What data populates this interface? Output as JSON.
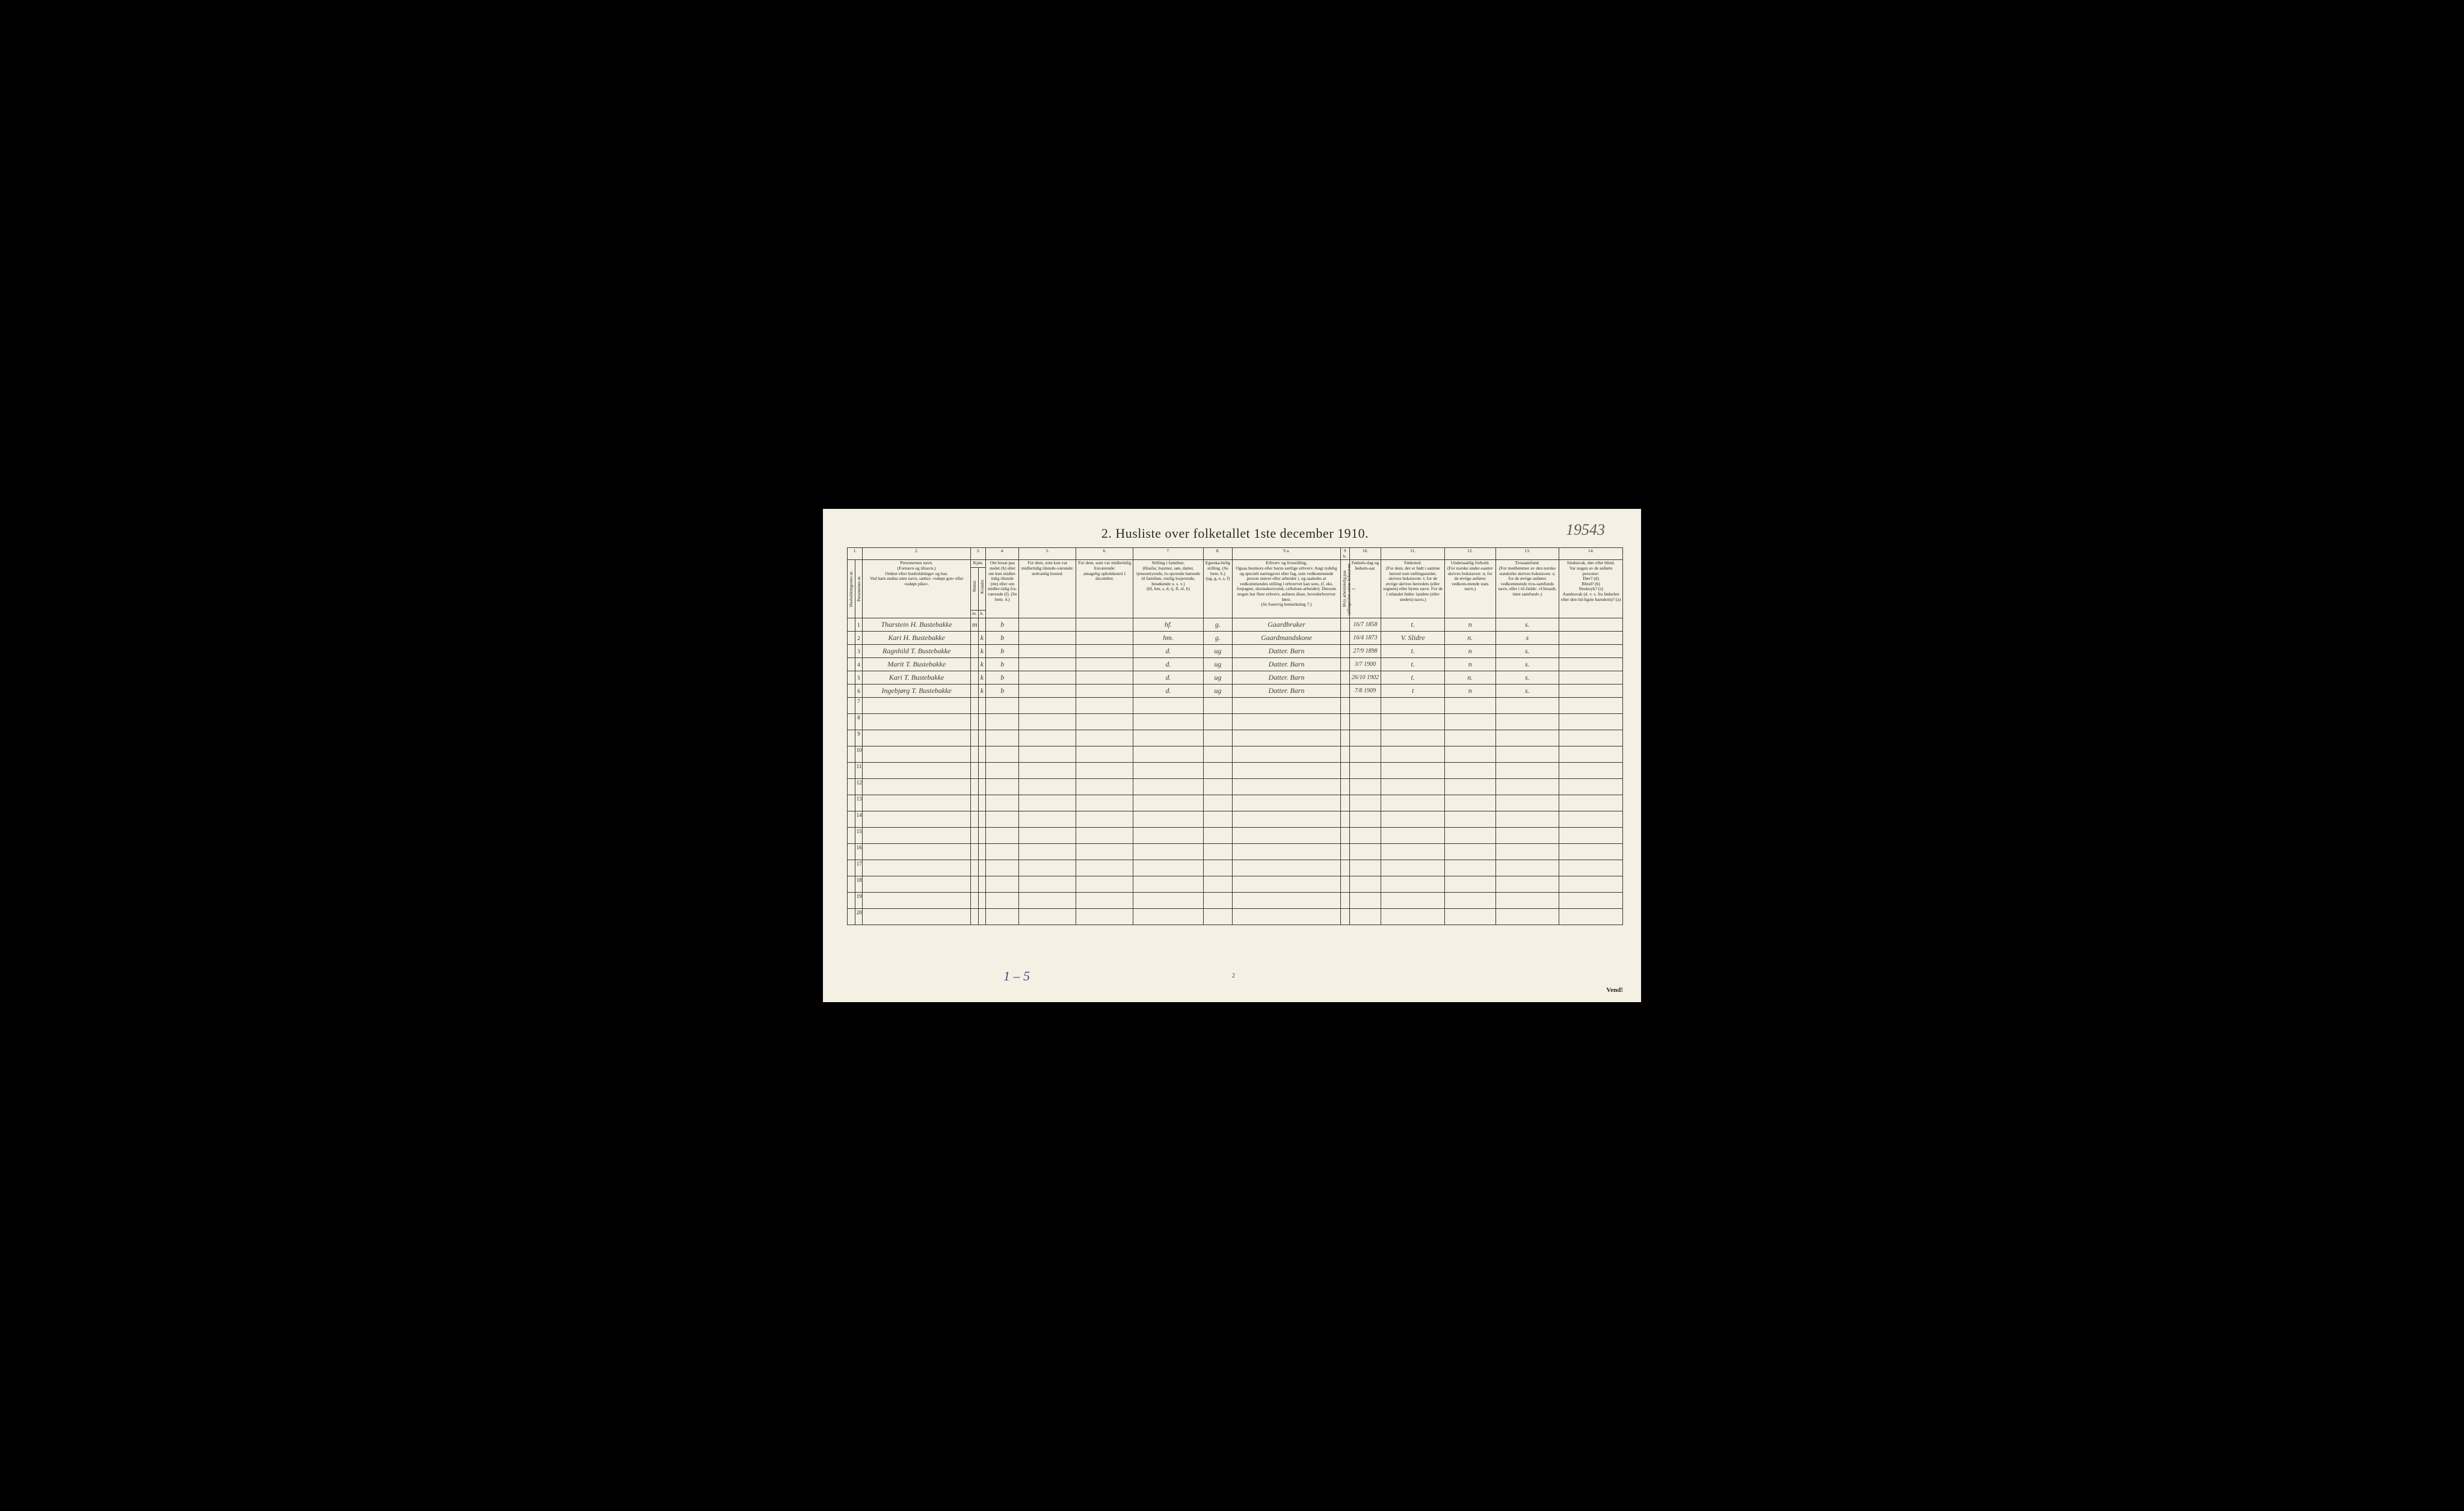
{
  "title": "2.  Husliste over folketallet 1ste december 1910.",
  "topRightNote": "19543",
  "bottomLeftNote": "1 – 5",
  "pageNumber": "2",
  "vend": "Vend!",
  "colNumbers": [
    "1.",
    "2.",
    "3.",
    "4.",
    "5.",
    "6.",
    "7.",
    "8.",
    "9 a.",
    "9 b.",
    "10.",
    "11.",
    "12.",
    "13.",
    "14."
  ],
  "headers": {
    "c1a": "Husholdningernes nr.",
    "c1b": "Personernes nr.",
    "c2": "Personernes navn.\n(Fornavn og tilnavn.)\nOrdnet efter husholdninger og hus.\nVed barn endnu uten navn, sættes: «udøpt gut» eller «udøpt pike».",
    "c3": "Kjøn.",
    "c3m": "Mænd.",
    "c3k": "Kvinder.",
    "c3ml": "m.",
    "c3kl": "k.",
    "c4": "Om bosat paa stedet (b) eller om kun midler-tidig tilstede (mt) eller om midler-tidig fra-værende (f). (Se bem. 4.)",
    "c5": "For dem, som kun var midlertidig tilstede-værende:\nsedvanlig bosted.",
    "c6": "For dem, som var midlertidig fraværende:\nantagelig opholdssted 1 december.",
    "c7": "Stilling i familien.\n(Husfar, husmor, søn, datter, tjenestetyende, lo-sjerende hørende til familien, enslig losjerende, besøkende o. s. v.)\n(hf, hm, s, d, tj, fl, el, b)",
    "c8": "Egteska-belig stilling. (Se bem. 6.)\n(ug, g, e, s, f)",
    "c9a": "Erhverv og livsstilling.\nOgsaa husmors eller barns særlige erhverv. Angi tydelig og specielt næringsvei eller fag, som vedkommende person utøver eller arbeider i, og saaledes at vedkommendes stilling i erhvervet kan sees, (f. eks. forpagter, skomakersvend, cellulose-arbeider). Dersom nogen har flere erhverv, anføres disse, hovederhvervet først.\n(Se forøvrig bemerkning 7.)",
    "c9b": "Hvis arbeidsledig paa tællingstiden sættes bokstaven: l",
    "c10": "Fødsels-dag og fødsels-aar.",
    "c11": "Fødested.\n(For dem, der er født i samme herred som tællingsstedet, skrives bokstaven: t; for de øvrige skrives herredets (eller sognets) eller byens navn. For de i utlandet fødte: landets (eller stedets) navn.)",
    "c12": "Undersaatlig forhold.\n(For norske under-saatter skrives bokstaven: n; for de øvrige anføres vedkom-mende stats navn.)",
    "c13": "Trossamfund.\n(For medlemmer av den norske statskirke skrives bokstaven: s; for de øvrige anføres vedkommende tros-samfunds navn, eller i til-fælde: «Uttraadt, intet samfund».)",
    "c14": "Sindssvak, døv eller blind.\nVar nogen av de anførte personer:\nDøv?      (d)\nBlind?     (b)\nSindssyk? (s)\nAandssvak (d. v. s. fra fødselen eller den tid-ligste barndom)? (a)"
  },
  "rows": [
    {
      "n": "1",
      "name": "Tharstein H. Bustebakke",
      "m": "m",
      "k": "",
      "b": "b",
      "c7": "hf.",
      "c8": "g.",
      "c9": "Gaardbruker",
      "c10": "16/7 1858",
      "c11": "t.",
      "c12": "n",
      "c13": "s."
    },
    {
      "n": "2",
      "name": "Kari H. Bustebakke",
      "m": "",
      "k": "k",
      "b": "b",
      "c7": "hm.",
      "c8": "g.",
      "c9": "Gaardmandskone",
      "c10": "16/4 1873",
      "c11": "V. Slidre",
      "c12": "n.",
      "c13": "s"
    },
    {
      "n": "3",
      "name": "Ragnhild T. Bustebakke",
      "m": "",
      "k": "k",
      "b": "b",
      "c7": "d.",
      "c8": "ug",
      "c9": "Datter.   Barn",
      "c10": "27/9 1898",
      "c11": "t.",
      "c12": "n",
      "c13": "s."
    },
    {
      "n": "4",
      "name": "Marit T. Bustebakke",
      "m": "",
      "k": "k",
      "b": "b",
      "c7": "d.",
      "c8": "ug",
      "c9": "Datter.   Barn",
      "c10": "3/7 1900",
      "c11": "t.",
      "c12": "n",
      "c13": "s."
    },
    {
      "n": "5",
      "name": "Kari T. Bustebakke",
      "m": "",
      "k": "k",
      "b": "b",
      "c7": "d.",
      "c8": "ug",
      "c9": "Datter.   Barn",
      "c10": "26/10 1902",
      "c11": "t.",
      "c12": "n.",
      "c13": "s."
    },
    {
      "n": "6",
      "name": "Ingebjørg T. Bustebakke",
      "m": "",
      "k": "k",
      "b": "b",
      "c7": "d.",
      "c8": "ug",
      "c9": "Datter.  Barn",
      "c10": "7/8 1909",
      "c11": "t",
      "c12": "n",
      "c13": "s."
    }
  ],
  "emptyRows": [
    7,
    8,
    9,
    10,
    11,
    12,
    13,
    14,
    15,
    16,
    17,
    18,
    19,
    20
  ],
  "colWidths": {
    "c1a": 12,
    "c1b": 12,
    "c2": 170,
    "c3m": 12,
    "c3k": 12,
    "c4": 52,
    "c5": 90,
    "c6": 90,
    "c7": 110,
    "c8": 46,
    "c9a": 170,
    "c9b": 14,
    "c10": 50,
    "c11": 100,
    "c12": 80,
    "c13": 100,
    "c14": 100
  }
}
